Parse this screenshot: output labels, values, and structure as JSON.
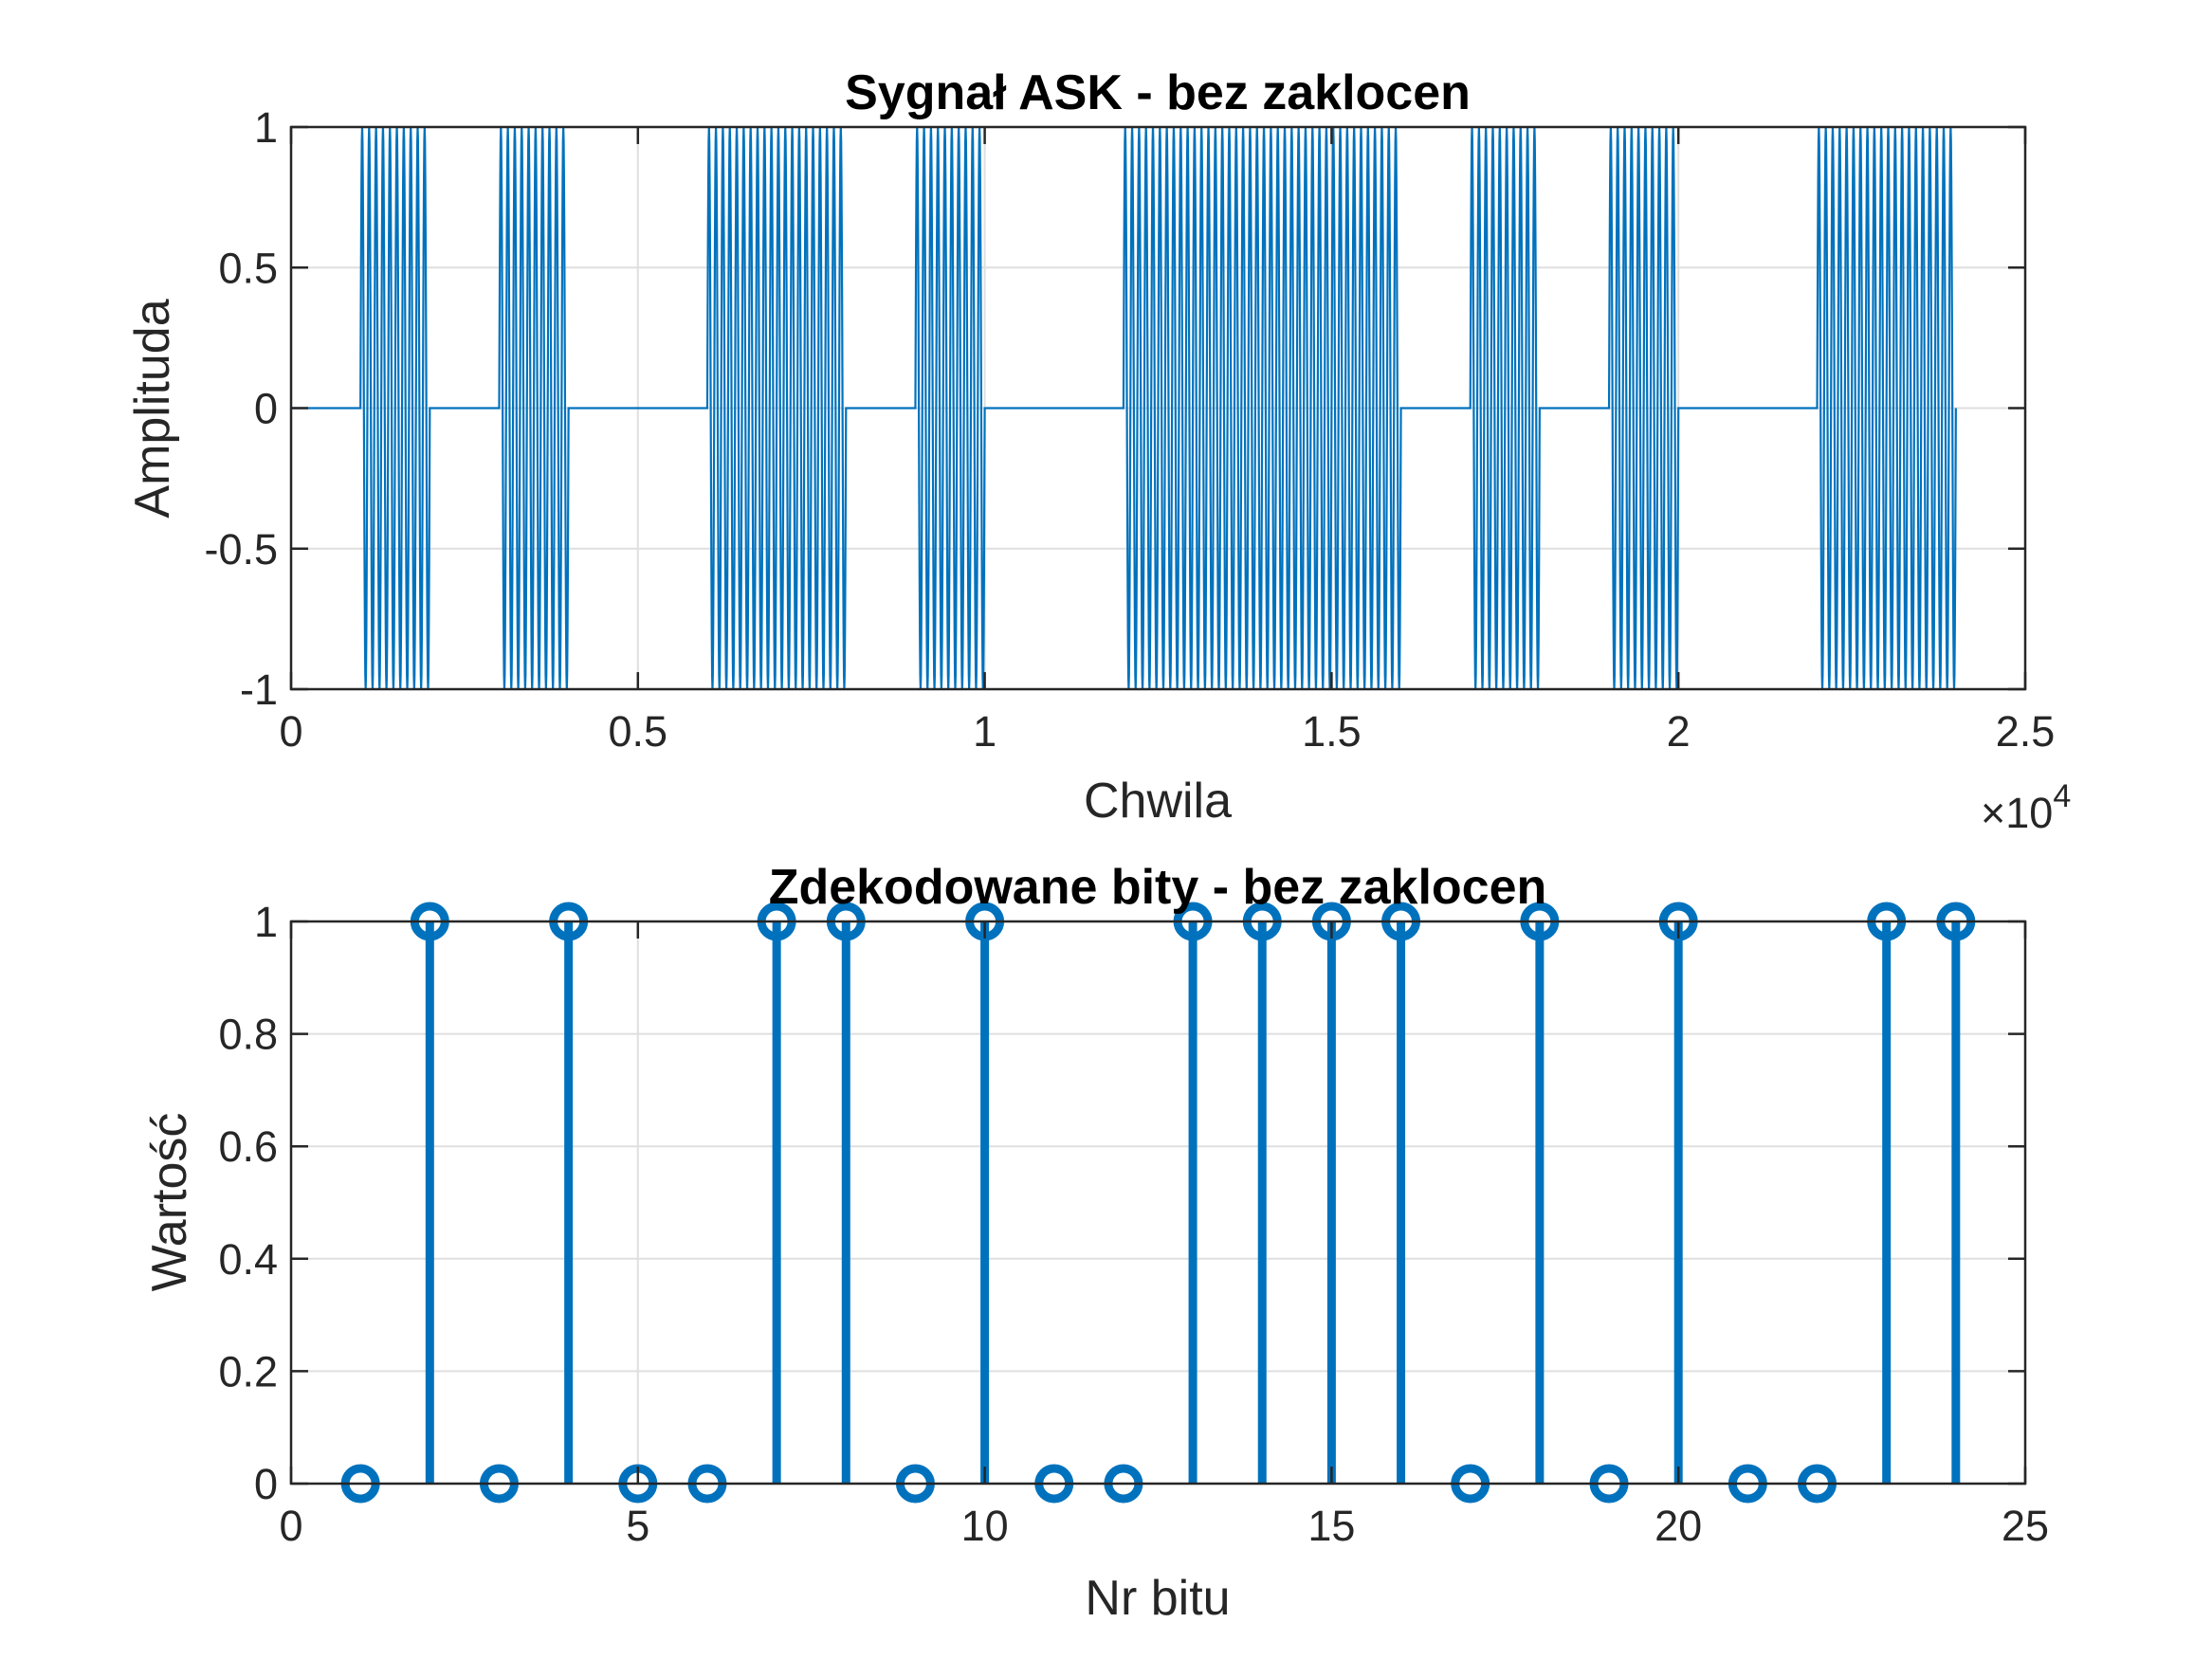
{
  "chart_data": [
    {
      "type": "line",
      "title": "Sygnał ASK - bez zaklocen",
      "xlabel": "Chwila",
      "ylabel": "Amplituda",
      "x_exponent_label": "×10",
      "x_exponent_power": "4",
      "xlim": [
        0,
        25000
      ],
      "ylim": [
        -1,
        1
      ],
      "xticks": [
        0,
        5000,
        10000,
        15000,
        20000,
        25000
      ],
      "xtick_labels": [
        "0",
        "0.5",
        "1",
        "1.5",
        "2",
        "2.5"
      ],
      "yticks": [
        -1,
        -0.5,
        0,
        0.5,
        1
      ],
      "ytick_labels": [
        "-1",
        "-0.5",
        "0",
        "0.5",
        "1"
      ],
      "grid": true,
      "color": "#0072BD",
      "samples_per_bit": 1000,
      "carrier_cycles_per_bit": 10,
      "bits": [
        0,
        1,
        0,
        1,
        0,
        0,
        1,
        1,
        0,
        1,
        0,
        0,
        1,
        1,
        1,
        1,
        0,
        1,
        0,
        1,
        0,
        0,
        1,
        1
      ]
    },
    {
      "type": "stem",
      "title": "Zdekodowane bity - bez zaklocen",
      "xlabel": "Nr bitu",
      "ylabel": "Wartość",
      "xlim": [
        0,
        25
      ],
      "ylim": [
        0,
        1
      ],
      "xticks": [
        0,
        5,
        10,
        15,
        20,
        25
      ],
      "xtick_labels": [
        "0",
        "5",
        "10",
        "15",
        "20",
        "25"
      ],
      "yticks": [
        0,
        0.2,
        0.4,
        0.6,
        0.8,
        1
      ],
      "ytick_labels": [
        "0",
        "0.2",
        "0.4",
        "0.6",
        "0.8",
        "1"
      ],
      "grid": true,
      "color": "#0072BD",
      "x": [
        1,
        2,
        3,
        4,
        5,
        6,
        7,
        8,
        9,
        10,
        11,
        12,
        13,
        14,
        15,
        16,
        17,
        18,
        19,
        20,
        21,
        22,
        23,
        24
      ],
      "values": [
        0,
        1,
        0,
        1,
        0,
        0,
        1,
        1,
        0,
        1,
        0,
        0,
        1,
        1,
        1,
        1,
        0,
        1,
        0,
        1,
        0,
        0,
        1,
        1
      ]
    }
  ]
}
